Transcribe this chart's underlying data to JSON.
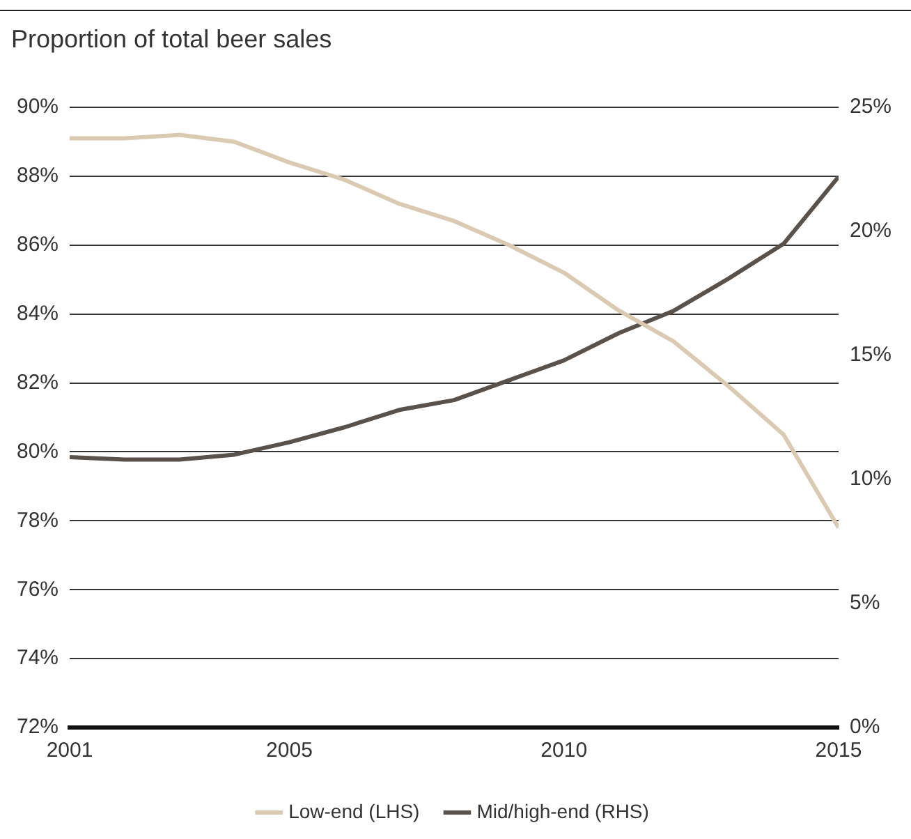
{
  "chart_data": {
    "type": "line",
    "title": "Proportion of total beer sales",
    "x": [
      2001,
      2002,
      2003,
      2004,
      2005,
      2006,
      2007,
      2008,
      2009,
      2010,
      2011,
      2012,
      2013,
      2014,
      2015
    ],
    "xlim": [
      2001,
      2015
    ],
    "xticks": [
      2001,
      2005,
      2010,
      2015
    ],
    "ylim": [
      72,
      90
    ],
    "yticks": [
      {
        "value": 72,
        "label": "72%"
      },
      {
        "value": 74,
        "label": "74%"
      },
      {
        "value": 76,
        "label": "76%"
      },
      {
        "value": 78,
        "label": "78%"
      },
      {
        "value": 80,
        "label": "80%"
      },
      {
        "value": 82,
        "label": "82%"
      },
      {
        "value": 84,
        "label": "84%"
      },
      {
        "value": 86,
        "label": "86%"
      },
      {
        "value": 88,
        "label": "88%"
      },
      {
        "value": 90,
        "label": "90%"
      }
    ],
    "y2lim": [
      0,
      25
    ],
    "y2ticks": [
      {
        "value": 0,
        "label": "0%"
      },
      {
        "value": 5,
        "label": "5%"
      },
      {
        "value": 10,
        "label": "10%"
      },
      {
        "value": 15,
        "label": "15%"
      },
      {
        "value": 20,
        "label": "20%"
      },
      {
        "value": 25,
        "label": "25%"
      }
    ],
    "grid": "y",
    "legend": "bottom",
    "marker": "none",
    "series": [
      {
        "name": "Low-end (LHS)",
        "color": "#dacab2",
        "values": [
          89.1,
          89.1,
          89.2,
          89.0,
          88.4,
          87.9,
          87.2,
          86.7,
          86.0,
          85.2,
          84.1,
          83.2,
          81.9,
          80.5,
          77.8
        ]
      },
      {
        "name": "Mid/high-end (RHS)",
        "color": "#5b514b",
        "axis": "y2",
        "values": [
          10.9,
          10.8,
          10.8,
          11.0,
          11.5,
          12.1,
          12.8,
          13.2,
          14.0,
          14.8,
          15.9,
          16.8,
          18.1,
          19.5,
          22.2
        ]
      }
    ]
  }
}
